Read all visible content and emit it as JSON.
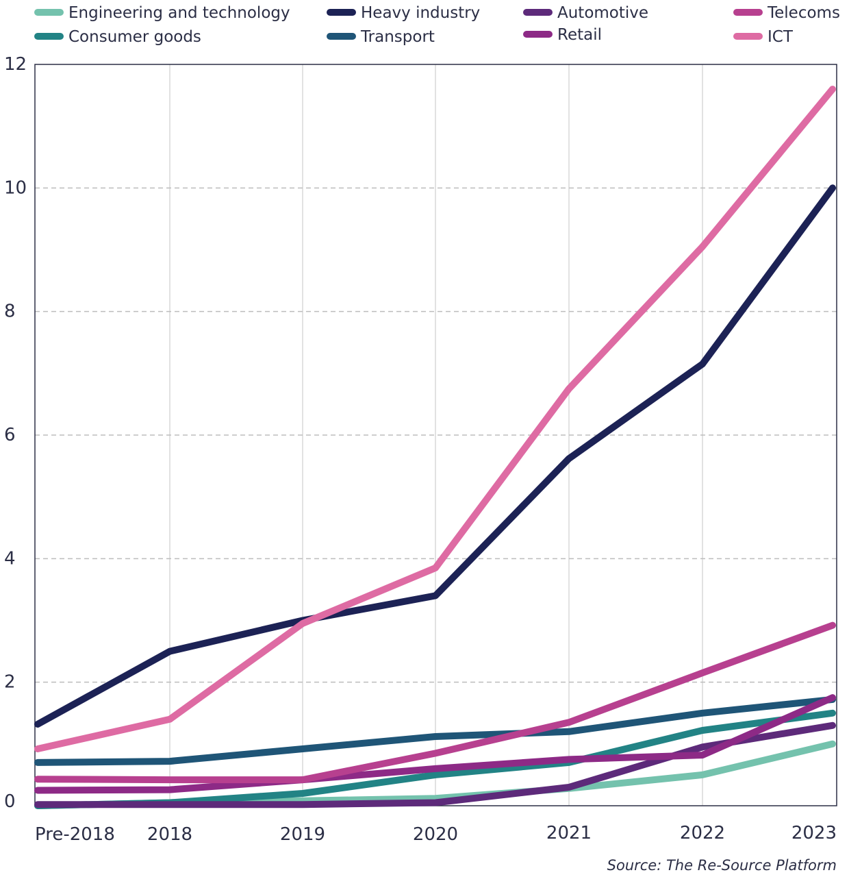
{
  "chart_data": {
    "type": "line",
    "categories": [
      "Pre-2018",
      "2018",
      "2019",
      "2020",
      "2021",
      "2022",
      "2023"
    ],
    "ylim": [
      0,
      12
    ],
    "yticks": [
      0,
      2,
      4,
      6,
      8,
      10,
      12
    ],
    "grid": "horizontal dashed + vertical solid",
    "legend_position": "top",
    "series": [
      {
        "name": "Engineering and technology",
        "color": "#74c2ad",
        "values": [
          0,
          0.05,
          0.08,
          0.12,
          0.28,
          0.5,
          1.0
        ]
      },
      {
        "name": "Consumer goods",
        "color": "#228385",
        "values": [
          0,
          0.05,
          0.2,
          0.5,
          0.7,
          1.22,
          1.5
        ]
      },
      {
        "name": "Heavy industry",
        "color": "#1c2255",
        "values": [
          1.32,
          2.5,
          3.0,
          3.4,
          5.62,
          7.15,
          10.0
        ]
      },
      {
        "name": "Transport",
        "color": "#1f5577",
        "values": [
          0.7,
          0.72,
          0.92,
          1.12,
          1.2,
          1.5,
          1.72
        ]
      },
      {
        "name": "Automotive",
        "color": "#5d2a7a",
        "values": [
          0.02,
          0.02,
          0.02,
          0.05,
          0.3,
          0.95,
          1.3
        ]
      },
      {
        "name": "Retail",
        "color": "#8d2a86",
        "values": [
          0.25,
          0.26,
          0.42,
          0.6,
          0.75,
          0.82,
          1.75
        ]
      },
      {
        "name": "Telecoms",
        "color": "#b7408f",
        "values": [
          0.43,
          0.42,
          0.42,
          0.85,
          1.35,
          2.15,
          2.92
        ]
      },
      {
        "name": "ICT",
        "color": "#de6ba3",
        "values": [
          0.92,
          1.4,
          2.95,
          3.85,
          6.75,
          9.05,
          11.6
        ]
      }
    ],
    "source": "Source: The Re-Source Platform"
  }
}
